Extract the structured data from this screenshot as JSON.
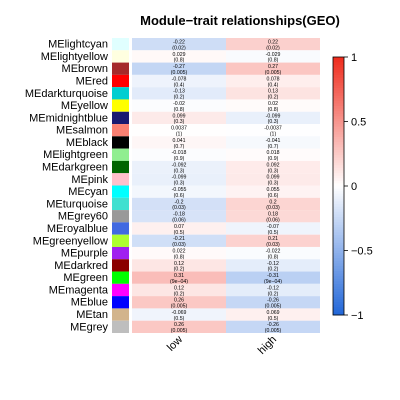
{
  "chart_data": {
    "type": "heatmap",
    "title": "Module−trait relationships(GEO)",
    "columns": [
      "low",
      "high"
    ],
    "rows": [
      {
        "module": "MElightcyan",
        "color": "#e0ffff",
        "values": [
          -0.22,
          0.22
        ],
        "texts": [
          "-0.22",
          "0.22"
        ],
        "pvalues": [
          "(0.02)",
          "(0.02)"
        ]
      },
      {
        "module": "MElightyellow",
        "color": "#ffffe0",
        "values": [
          0.029,
          -0.029
        ],
        "texts": [
          "0.029",
          "-0.029"
        ],
        "pvalues": [
          "(0.8)",
          "(0.8)"
        ]
      },
      {
        "module": "MEbrown",
        "color": "#a52a2a",
        "values": [
          -0.27,
          0.27
        ],
        "texts": [
          "-0.27",
          "0.27"
        ],
        "pvalues": [
          "(0.005)",
          "(0.005)"
        ]
      },
      {
        "module": "MEred",
        "color": "#ff0000",
        "values": [
          -0.078,
          0.078
        ],
        "texts": [
          "-0.078",
          "0.078"
        ],
        "pvalues": [
          "(0.4)",
          "(0.4)"
        ]
      },
      {
        "module": "MEdarkturquoise",
        "color": "#00ced1",
        "values": [
          -0.13,
          0.13
        ],
        "texts": [
          "-0.13",
          "0.13"
        ],
        "pvalues": [
          "(0.2)",
          "(0.2)"
        ]
      },
      {
        "module": "MEyellow",
        "color": "#ffff00",
        "values": [
          -0.02,
          0.02
        ],
        "texts": [
          "-0.02",
          "0.02"
        ],
        "pvalues": [
          "(0.8)",
          "(0.8)"
        ]
      },
      {
        "module": "MEmidnightblue",
        "color": "#191970",
        "values": [
          0.099,
          -0.099
        ],
        "texts": [
          "0.099",
          "-0.099"
        ],
        "pvalues": [
          "(0.3)",
          "(0.3)"
        ]
      },
      {
        "module": "MEsalmon",
        "color": "#fa8072",
        "values": [
          0.0037,
          -0.0037
        ],
        "texts": [
          "0.0037",
          "-0.0037"
        ],
        "pvalues": [
          "(1)",
          "(1)"
        ]
      },
      {
        "module": "MEblack",
        "color": "#000000",
        "values": [
          0.041,
          -0.041
        ],
        "texts": [
          "0.041",
          "-0.041"
        ],
        "pvalues": [
          "(0.7)",
          "(0.7)"
        ]
      },
      {
        "module": "MElightgreen",
        "color": "#90ee90",
        "values": [
          -0.018,
          0.018
        ],
        "texts": [
          "-0.018",
          "0.018"
        ],
        "pvalues": [
          "(0.9)",
          "(0.9)"
        ]
      },
      {
        "module": "MEdarkgreen",
        "color": "#006400",
        "values": [
          -0.092,
          0.092
        ],
        "texts": [
          "-0.092",
          "0.092"
        ],
        "pvalues": [
          "(0.3)",
          "(0.3)"
        ]
      },
      {
        "module": "MEpink",
        "color": "#ffc0cb",
        "values": [
          -0.099,
          0.099
        ],
        "texts": [
          "-0.099",
          "0.099"
        ],
        "pvalues": [
          "(0.3)",
          "(0.3)"
        ]
      },
      {
        "module": "MEcyan",
        "color": "#00ffff",
        "values": [
          -0.055,
          0.055
        ],
        "texts": [
          "-0.055",
          "0.055"
        ],
        "pvalues": [
          "(0.6)",
          "(0.6)"
        ]
      },
      {
        "module": "MEturquoise",
        "color": "#40e0d0",
        "values": [
          -0.2,
          0.2
        ],
        "texts": [
          "-0.2",
          "0.2"
        ],
        "pvalues": [
          "(0.03)",
          "(0.03)"
        ]
      },
      {
        "module": "MEgrey60",
        "color": "#999999",
        "values": [
          -0.18,
          0.18
        ],
        "texts": [
          "-0.18",
          "0.18"
        ],
        "pvalues": [
          "(0.06)",
          "(0.06)"
        ]
      },
      {
        "module": "MEroyalblue",
        "color": "#4169e1",
        "values": [
          0.07,
          -0.07
        ],
        "texts": [
          "0.07",
          "-0.07"
        ],
        "pvalues": [
          "(0.5)",
          "(0.5)"
        ]
      },
      {
        "module": "MEgreenyellow",
        "color": "#adff2f",
        "values": [
          -0.21,
          0.21
        ],
        "texts": [
          "-0.21",
          "0.21"
        ],
        "pvalues": [
          "(0.03)",
          "(0.03)"
        ]
      },
      {
        "module": "MEpurple",
        "color": "#a020f0",
        "values": [
          0.022,
          -0.022
        ],
        "texts": [
          "0.022",
          "-0.022"
        ],
        "pvalues": [
          "(0.8)",
          "(0.8)"
        ]
      },
      {
        "module": "MEdarkred",
        "color": "#8b0000",
        "values": [
          0.12,
          -0.12
        ],
        "texts": [
          "0.12",
          "-0.12"
        ],
        "pvalues": [
          "(0.2)",
          "(0.2)"
        ]
      },
      {
        "module": "MEgreen",
        "color": "#00ff00",
        "values": [
          0.31,
          -0.31
        ],
        "texts": [
          "0.31",
          "-0.31"
        ],
        "pvalues": [
          "(9e−04)",
          "(9e−04)"
        ]
      },
      {
        "module": "MEmagenta",
        "color": "#ff00ff",
        "values": [
          0.12,
          -0.12
        ],
        "texts": [
          "0.12",
          "-0.12"
        ],
        "pvalues": [
          "(0.2)",
          "(0.2)"
        ]
      },
      {
        "module": "MEblue",
        "color": "#0000ff",
        "values": [
          0.26,
          -0.26
        ],
        "texts": [
          "0.26",
          "-0.26"
        ],
        "pvalues": [
          "(0.005)",
          "(0.005)"
        ]
      },
      {
        "module": "MEtan",
        "color": "#d2b48c",
        "values": [
          -0.069,
          0.069
        ],
        "texts": [
          "-0.069",
          "0.069"
        ],
        "pvalues": [
          "(0.5)",
          "(0.5)"
        ]
      },
      {
        "module": "MEgrey",
        "color": "#bebebe",
        "values": [
          0.26,
          -0.26
        ],
        "texts": [
          "0.26",
          "-0.26"
        ],
        "pvalues": [
          "(0.005)",
          "(0.005)"
        ]
      }
    ],
    "colorbar": {
      "range": [
        -1,
        1
      ],
      "ticks": [
        "1",
        "0.5",
        "0",
        "−0.5",
        "−1"
      ],
      "tick_values": [
        1,
        0.5,
        0,
        -0.5,
        -1
      ],
      "low_color": "#2166d8",
      "mid_color": "#ffffff",
      "high_color": "#ef2b1c"
    }
  }
}
